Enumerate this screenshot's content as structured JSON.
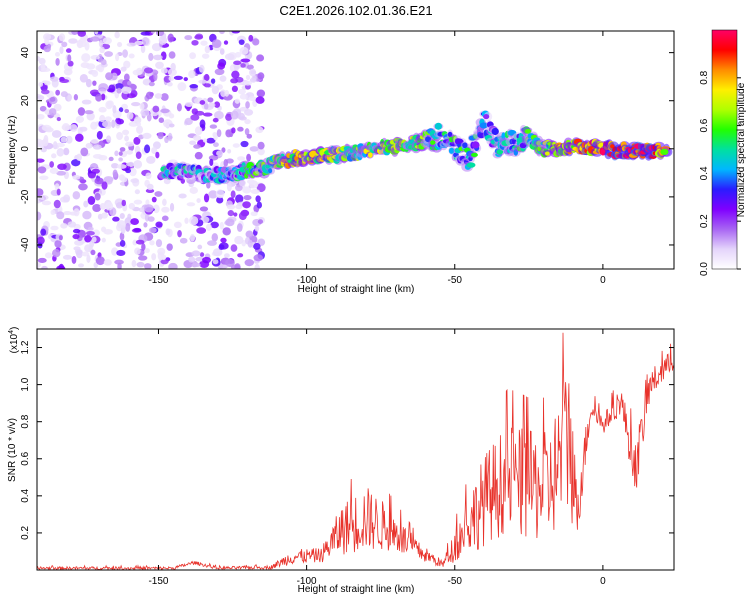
{
  "title": "C2E1.2026.102.01.36.E21",
  "chart_data": [
    {
      "type": "heatmap",
      "xlabel": "Height of straight line (km)",
      "ylabel": "Frequency (Hz)",
      "xlim": [
        -191,
        24
      ],
      "ylim": [
        -50,
        49
      ],
      "xticks": [
        -150,
        -100,
        -50,
        0
      ],
      "yticks": [
        -40,
        -20,
        0,
        20,
        40
      ],
      "colorbar": {
        "label": "Normalized spectral amplitude",
        "range": [
          0,
          1
        ],
        "ticks": [
          0.0,
          0.2,
          0.4,
          0.6,
          0.8
        ],
        "tick_labels": [
          "0.0",
          "0.2",
          "0.4",
          "0.6",
          "0.8"
        ],
        "colors": [
          "#ffffff",
          "#e4d4fb",
          "#a865f3",
          "#7f00ff",
          "#2a1cff",
          "#00b7ff",
          "#00e0a0",
          "#22ff00",
          "#b0ff00",
          "#ffef00",
          "#ff8c00",
          "#ff0000",
          "#ff0066"
        ]
      },
      "noise_region": {
        "x": [
          -191,
          -115
        ],
        "y": [
          -50,
          49
        ],
        "amplitude": [
          0.05,
          0.3
        ]
      },
      "signal_track": {
        "points": [
          {
            "x": -148,
            "y": -9,
            "amp": 0.45
          },
          {
            "x": -140,
            "y": -10,
            "amp": 0.35
          },
          {
            "x": -130,
            "y": -11,
            "amp": 0.3
          },
          {
            "x": -115,
            "y": -8,
            "amp": 0.5
          },
          {
            "x": -105,
            "y": -4,
            "amp": 0.7
          },
          {
            "x": -95,
            "y": -3,
            "amp": 0.65
          },
          {
            "x": -85,
            "y": -2,
            "amp": 0.55
          },
          {
            "x": -75,
            "y": 0,
            "amp": 0.6
          },
          {
            "x": -65,
            "y": 2,
            "amp": 0.6
          },
          {
            "x": -55,
            "y": 5,
            "amp": 0.45
          },
          {
            "x": -45,
            "y": -4,
            "amp": 0.45
          },
          {
            "x": -40,
            "y": 11,
            "amp": 0.3
          },
          {
            "x": -35,
            "y": 1,
            "amp": 0.4
          },
          {
            "x": -25,
            "y": 4,
            "amp": 0.45
          },
          {
            "x": -20,
            "y": 0,
            "amp": 0.6
          },
          {
            "x": -10,
            "y": 1,
            "amp": 0.75
          },
          {
            "x": 0,
            "y": 0,
            "amp": 0.85
          },
          {
            "x": 8,
            "y": -1,
            "amp": 0.95
          },
          {
            "x": 15,
            "y": -1,
            "amp": 0.9
          },
          {
            "x": 22,
            "y": 0,
            "amp": 0.7
          }
        ]
      }
    },
    {
      "type": "line",
      "xlabel": "Height of straight line (km)",
      "ylabel": "SNR (10 * v/v)",
      "yexponent_label": "(x10",
      "yexponent_power": "4",
      "yexponent_close": ")",
      "xlim": [
        -191,
        24
      ],
      "ylim": [
        0,
        1.3
      ],
      "xticks": [
        -150,
        -100,
        -50,
        0
      ],
      "yticks": [
        0.2,
        0.4,
        0.6,
        0.8,
        1.0,
        1.2
      ],
      "ytick_labels": [
        "0.2",
        "0.4",
        "0.6",
        "0.8",
        "1.0",
        "1.2"
      ],
      "color": "#e8322b",
      "envelope": [
        {
          "x": -191,
          "mean": 0.01,
          "amp": 0.008
        },
        {
          "x": -145,
          "mean": 0.01,
          "amp": 0.008
        },
        {
          "x": -138,
          "mean": 0.04,
          "amp": 0.01
        },
        {
          "x": -130,
          "mean": 0.01,
          "amp": 0.008
        },
        {
          "x": -112,
          "mean": 0.015,
          "amp": 0.01
        },
        {
          "x": -105,
          "mean": 0.07,
          "amp": 0.04
        },
        {
          "x": -95,
          "mean": 0.08,
          "amp": 0.04
        },
        {
          "x": -88,
          "mean": 0.22,
          "amp": 0.14
        },
        {
          "x": -80,
          "mean": 0.28,
          "amp": 0.18
        },
        {
          "x": -72,
          "mean": 0.22,
          "amp": 0.12
        },
        {
          "x": -62,
          "mean": 0.1,
          "amp": 0.05
        },
        {
          "x": -54,
          "mean": 0.03,
          "amp": 0.02
        },
        {
          "x": -48,
          "mean": 0.18,
          "amp": 0.12
        },
        {
          "x": -40,
          "mean": 0.38,
          "amp": 0.25
        },
        {
          "x": -32,
          "mean": 0.5,
          "amp": 0.3
        },
        {
          "x": -25,
          "mean": 0.45,
          "amp": 0.3
        },
        {
          "x": -18,
          "mean": 0.45,
          "amp": 0.3
        },
        {
          "x": -11,
          "mean": 0.75,
          "amp": 0.45
        },
        {
          "x": -9,
          "mean": 0.3,
          "amp": 0.2
        },
        {
          "x": -4,
          "mean": 0.88,
          "amp": 0.06
        },
        {
          "x": 0,
          "mean": 0.78,
          "amp": 0.05
        },
        {
          "x": 6,
          "mean": 0.92,
          "amp": 0.08
        },
        {
          "x": 11,
          "mean": 0.55,
          "amp": 0.15
        },
        {
          "x": 16,
          "mean": 1.0,
          "amp": 0.08
        },
        {
          "x": 24,
          "mean": 1.14,
          "amp": 0.06
        }
      ]
    }
  ]
}
